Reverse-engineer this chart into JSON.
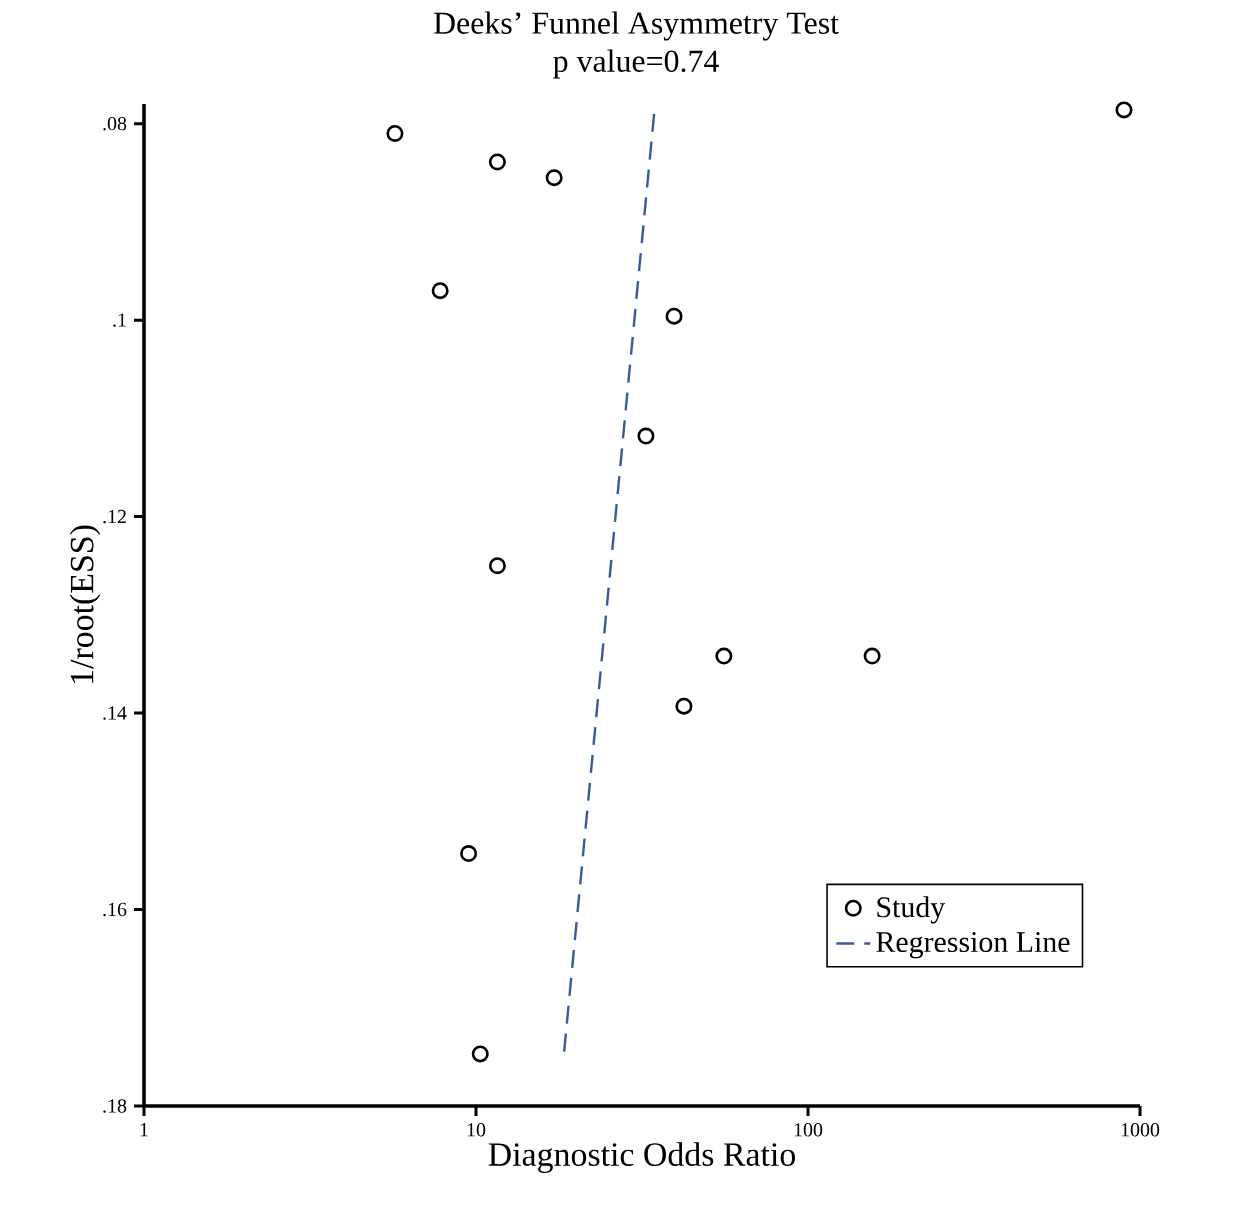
{
  "chart_data": {
    "type": "scatter",
    "title": "Deeks’ Funnel Asymmetry Test",
    "subtitle": "p value=0.74",
    "xlabel": "Diagnostic Odds Ratio",
    "ylabel": "1/root(ESS)",
    "log": "x",
    "xlim": [
      1,
      1000
    ],
    "xticks": [
      1,
      10,
      100,
      1000
    ],
    "ylim": [
      0.18,
      0.078
    ],
    "yticks": [
      {
        "value": 0.08,
        "label": ".08"
      },
      {
        "value": 0.1,
        "label": ".1"
      },
      {
        "value": 0.12,
        "label": ".12"
      },
      {
        "value": 0.14,
        "label": ".14"
      },
      {
        "value": 0.16,
        "label": ".16"
      },
      {
        "value": 0.18,
        "label": ".18"
      }
    ],
    "legend": "bottom right",
    "series": [
      {
        "name": "Study",
        "marker": "circle",
        "color": "#000000",
        "x": [
          5.7,
          11.6,
          17.2,
          7.8,
          39.5,
          32.5,
          11.6,
          55.8,
          156,
          42.3,
          9.5,
          10.3,
          895
        ],
        "values": [
          0.081,
          0.0839,
          0.0855,
          0.097,
          0.0996,
          0.1118,
          0.125,
          0.1342,
          0.1342,
          0.1393,
          0.1543,
          0.1747,
          0.0786
        ]
      },
      {
        "name": "Regression Line",
        "type": "line",
        "line_style": "dashed",
        "color": "#3a5a9a",
        "x": [
          34.4,
          18.4
        ],
        "values": [
          0.079,
          0.1747
        ]
      }
    ]
  }
}
